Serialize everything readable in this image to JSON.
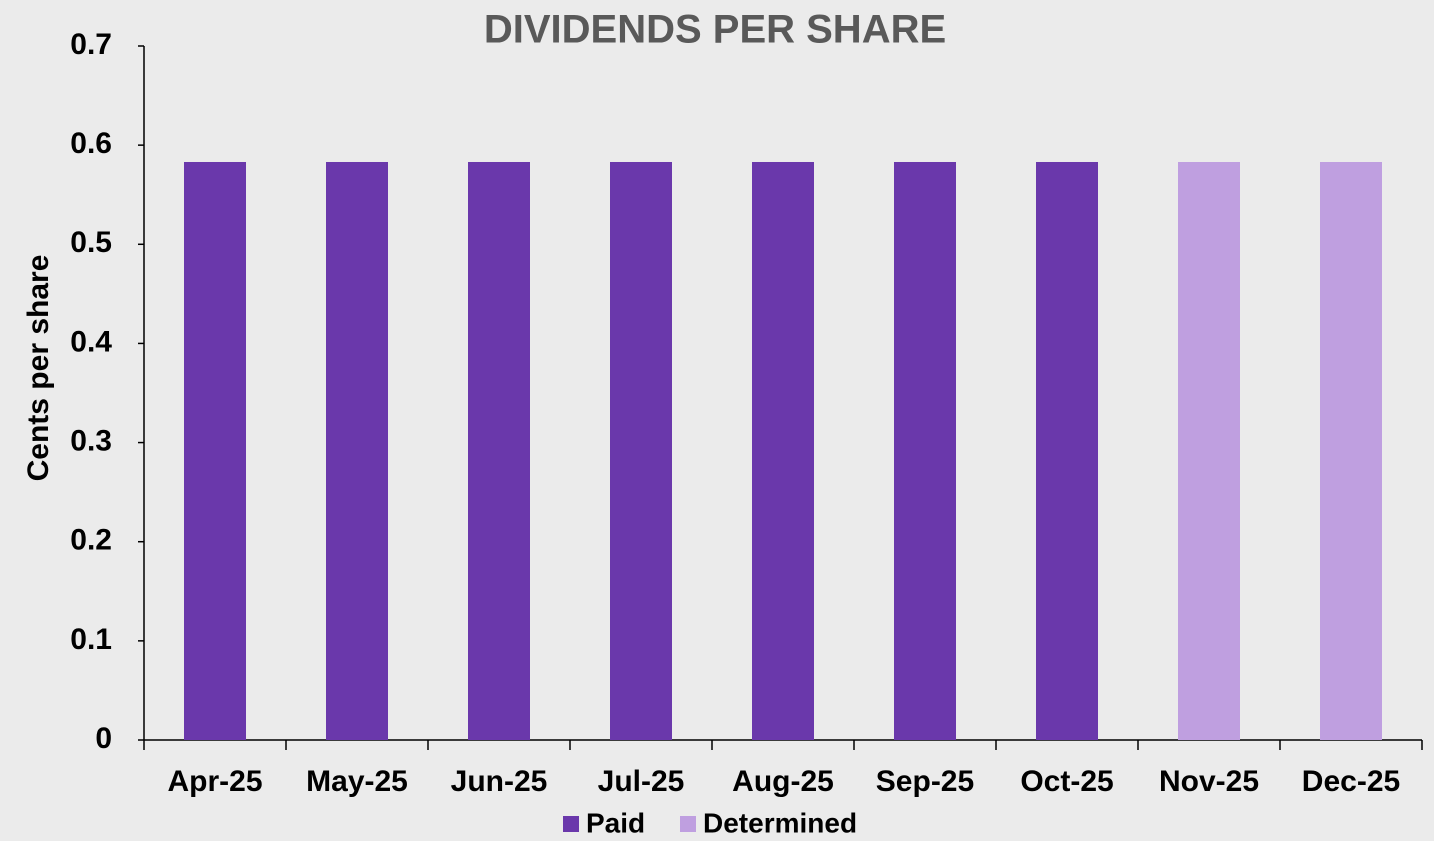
{
  "chart_data": {
    "type": "bar",
    "title": "DIVIDENDS PER SHARE",
    "y_label": "Cents per share",
    "categories": [
      "Apr-25",
      "May-25",
      "Jun-25",
      "Jul-25",
      "Aug-25",
      "Sep-25",
      "Oct-25",
      "Nov-25",
      "Dec-25"
    ],
    "series": [
      {
        "name": "Paid",
        "color": "#6a38ab",
        "values": [
          0.583,
          0.583,
          0.583,
          0.583,
          0.583,
          0.583,
          0.583,
          null,
          null
        ]
      },
      {
        "name": "Determined",
        "color": "#bf9fe0",
        "values": [
          null,
          null,
          null,
          null,
          null,
          null,
          null,
          0.583,
          0.583
        ]
      }
    ],
    "ylim": [
      0,
      0.7
    ],
    "yticks": [
      0,
      0.1,
      0.2,
      0.3,
      0.4,
      0.5,
      0.6,
      0.7
    ],
    "grid": false,
    "legend": "bottom"
  }
}
